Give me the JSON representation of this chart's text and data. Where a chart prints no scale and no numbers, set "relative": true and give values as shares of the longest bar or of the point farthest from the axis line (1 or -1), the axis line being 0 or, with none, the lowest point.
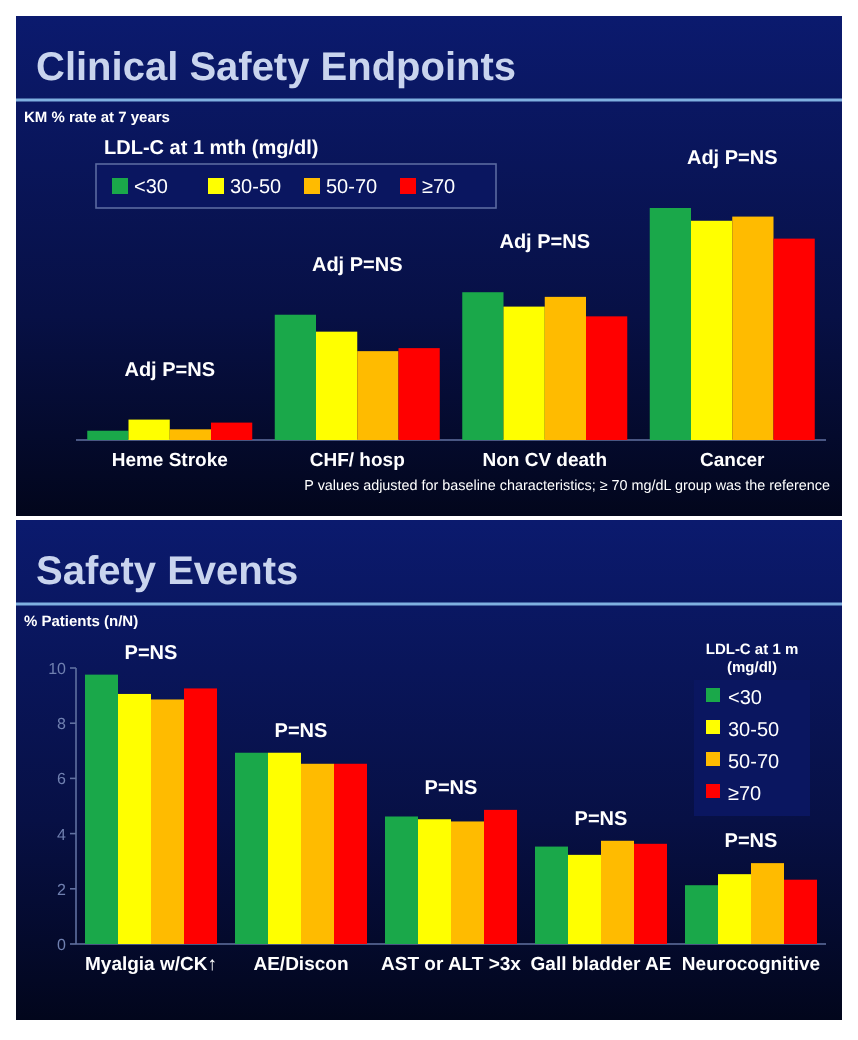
{
  "chart_data": [
    {
      "type": "bar",
      "title": "Clinical Safety Endpoints",
      "ylabel": "KM % rate at 7 years",
      "legend_title": "LDL-C at 1 mth (mg/dl)",
      "legend": "top left",
      "relative": true,
      "categories": [
        "Heme Stroke",
        "CHF/ hosp",
        "Non CV death",
        "Cancer"
      ],
      "series": [
        {
          "name": "<30",
          "color": "#1aa84a",
          "values": [
            0.04,
            0.54,
            0.637,
            1
          ]
        },
        {
          "name": "30-50",
          "color": "#ffff00",
          "values": [
            0.088,
            0.467,
            0.575,
            0.945
          ]
        },
        {
          "name": "50-70",
          "color": "#ffbb00",
          "values": [
            0.046,
            0.383,
            0.617,
            0.963
          ]
        },
        {
          "name": "≥70",
          "color": "#ff0000",
          "values": [
            0.075,
            0.396,
            0.533,
            0.868
          ]
        }
      ],
      "annotations": [
        "Adj P=NS",
        "Adj P=NS",
        "Adj P=NS",
        "Adj P=NS",
        "P values adjusted for baseline characteristics; ≥ 70 mg/dL group was the reference"
      ]
    },
    {
      "type": "bar",
      "title": "Safety Events",
      "ylabel": "% Patients (n/N)",
      "legend_title": "LDL-C at 1 m (mg/dl)",
      "legend": "top right",
      "ylim": [
        0,
        10
      ],
      "yticks": [
        0,
        2,
        4,
        6,
        8,
        10
      ],
      "categories": [
        "Myalgia w/CK↑",
        "AE/Discon",
        "AST or ALT >3x",
        "Gall bladder AE",
        "Neurocognitive"
      ],
      "series": [
        {
          "name": "<30",
          "color": "#1aa84a",
          "values": [
            9.76,
            6.93,
            4.62,
            3.53,
            2.13
          ]
        },
        {
          "name": "30-50",
          "color": "#ffff00",
          "values": [
            9.06,
            6.93,
            4.52,
            3.23,
            2.53
          ]
        },
        {
          "name": "50-70",
          "color": "#ffbb00",
          "values": [
            8.86,
            6.53,
            4.44,
            3.74,
            2.93
          ]
        },
        {
          "name": "≥70",
          "color": "#ff0000",
          "values": [
            9.26,
            6.53,
            4.86,
            3.63,
            2.33
          ]
        }
      ],
      "annotations": [
        "P=NS",
        "P=NS",
        "P=NS",
        "P=NS",
        "P=NS"
      ]
    }
  ]
}
